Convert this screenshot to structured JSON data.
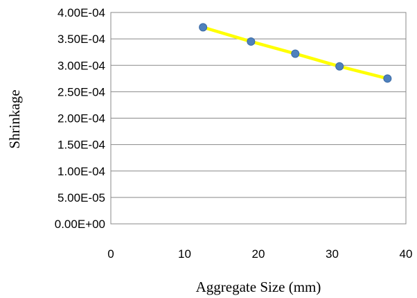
{
  "chart_data": {
    "type": "line",
    "title": "",
    "xlabel": "Aggregate Size (mm)",
    "ylabel": "Shrinkage",
    "xlim": [
      0,
      40
    ],
    "ylim": [
      0,
      0.0004
    ],
    "x_ticks": [
      0,
      10,
      20,
      30,
      40
    ],
    "x_tick_labels": [
      "0",
      "10",
      "20",
      "30",
      "40"
    ],
    "y_ticks": [
      0,
      5e-05,
      0.0001,
      0.00015,
      0.0002,
      0.00025,
      0.0003,
      0.00035,
      0.0004
    ],
    "y_tick_labels": [
      "0.00E+00",
      "5.00E-05",
      "1.00E-04",
      "1.50E-04",
      "2.00E-04",
      "2.50E-04",
      "3.00E-04",
      "3.50E-04",
      "4.00E-04"
    ],
    "grid": {
      "horizontal": true,
      "vertical": false
    },
    "legend": "none",
    "series": [
      {
        "x": [
          12.5,
          19,
          25,
          31,
          37.5
        ],
        "y": [
          0.000372,
          0.000345,
          0.000322,
          0.000298,
          0.000275
        ],
        "line_color": "#ffff00",
        "marker_color": "#4f81bd"
      }
    ]
  }
}
